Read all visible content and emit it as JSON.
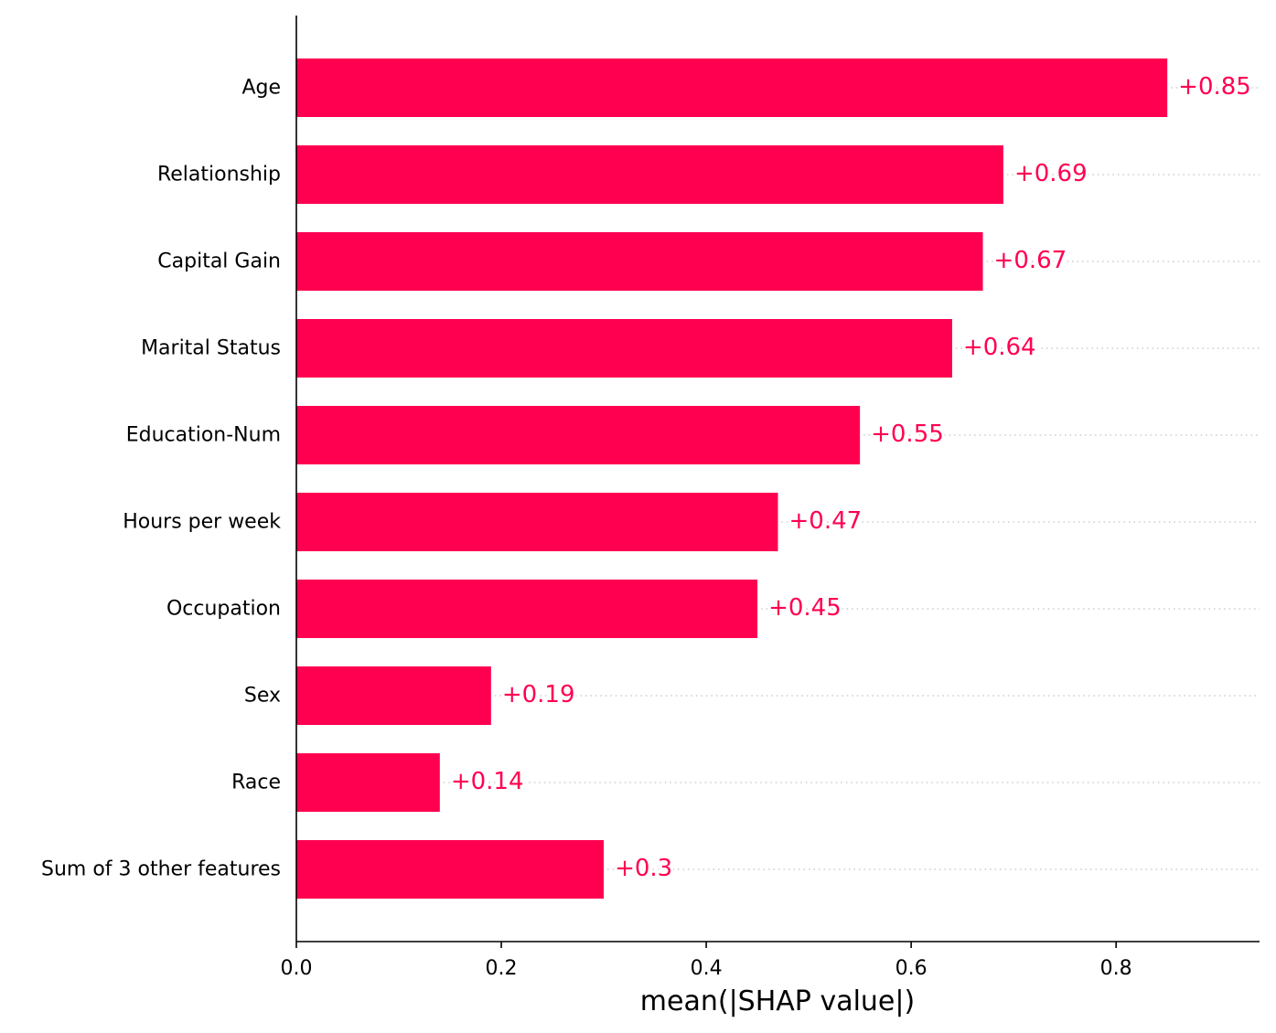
{
  "chart_data": {
    "type": "bar",
    "orientation": "horizontal",
    "title": "",
    "xlabel": "mean(|SHAP value|)",
    "ylabel": "",
    "categories": [
      "Age",
      "Relationship",
      "Capital Gain",
      "Marital Status",
      "Education-Num",
      "Hours per week",
      "Occupation",
      "Sex",
      "Race",
      "Sum of 3 other features"
    ],
    "values": [
      0.85,
      0.69,
      0.67,
      0.64,
      0.55,
      0.47,
      0.45,
      0.19,
      0.14,
      0.3
    ],
    "value_labels": [
      "+0.85",
      "+0.69",
      "+0.67",
      "+0.64",
      "+0.55",
      "+0.47",
      "+0.45",
      "+0.19",
      "+0.14",
      "+0.3"
    ],
    "xlim": [
      0,
      0.94
    ],
    "xticks": [
      0.0,
      0.2,
      0.4,
      0.6,
      0.8
    ],
    "xtick_labels": [
      "0.0",
      "0.2",
      "0.4",
      "0.6",
      "0.8"
    ],
    "grid": false,
    "bar_color": "#ff0051",
    "label_color": "#ff0051"
  }
}
